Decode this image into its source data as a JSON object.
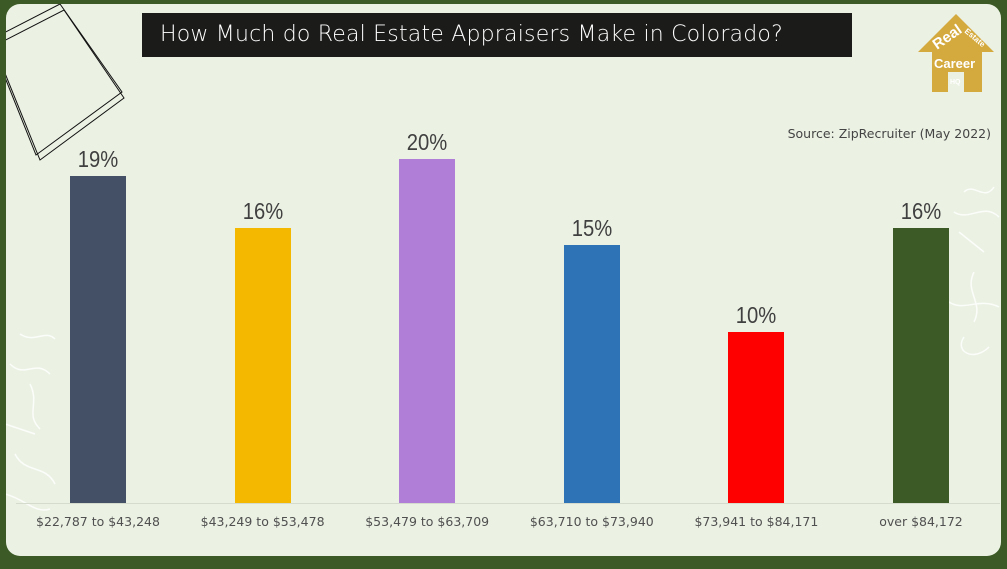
{
  "header": {
    "title": "How Much do Real Estate Appraisers Make in Colorado?",
    "source": "Source: ZipRecruiter (May 2022)"
  },
  "logo": {
    "line1": "Real",
    "line2": "Estate",
    "line3": "Career",
    "line4": "HQ",
    "color": "#d4a93e"
  },
  "colors": {
    "frame": "#3b5a25",
    "background": "#ebf2e4",
    "title_bg": "#1b1b1a"
  },
  "chart_data": {
    "type": "bar",
    "title": "How Much do Real Estate Appraisers Make in Colorado?",
    "subtitle": "Source: ZipRecruiter (May 2022)",
    "xlabel": "",
    "ylabel": "",
    "ylim": [
      0,
      20
    ],
    "grid": false,
    "legend": null,
    "categories": [
      "$22,787 to $43,248",
      "$43,249 to $53,478",
      "$53,479 to $63,709",
      "$63,710 to $73,940",
      "$73,941 to $84,171",
      "over $84,172"
    ],
    "values": [
      19,
      16,
      20,
      15,
      10,
      16
    ],
    "labels": [
      "19%",
      "16%",
      "20%",
      "15%",
      "10%",
      "16%"
    ],
    "bar_colors": [
      "#435066",
      "#f5b800",
      "#b07ed6",
      "#2e73b5",
      "#ff0000",
      "#3b5a25"
    ]
  }
}
